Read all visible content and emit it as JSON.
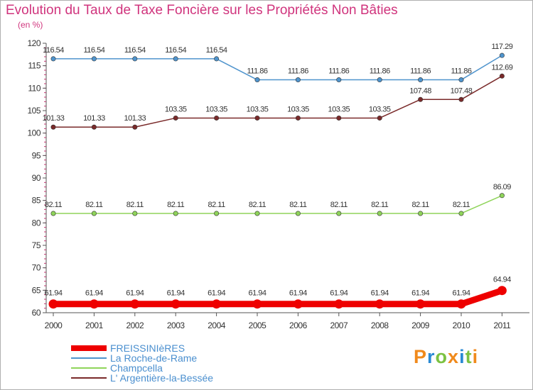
{
  "header": {
    "title": "Evolution du Taux de Taxe Foncière sur les Propriétés Non Bâties",
    "subtitle": "(en %)"
  },
  "logo": {
    "letters": [
      "P",
      "r",
      "o",
      "x",
      "i",
      "t",
      "i"
    ],
    "colors": [
      "#f08a1c",
      "#2a8ad4",
      "#7cc242",
      "#f08a1c",
      "#2a8ad4",
      "#7cc242",
      "#f08a1c"
    ]
  },
  "chart_data": {
    "type": "line",
    "title": "Evolution du Taux de Taxe Foncière sur les Propriétés Non Bâties",
    "ylabel": "(en %)",
    "xlabel": "",
    "x": [
      "2000",
      "2001",
      "2002",
      "2003",
      "2004",
      "2005",
      "2006",
      "2007",
      "2008",
      "2009",
      "2010",
      "2011"
    ],
    "ylim": [
      60,
      120
    ],
    "yticks": [
      "60",
      "65",
      "70",
      "75",
      "80",
      "85",
      "90",
      "95",
      "100",
      "105",
      "110",
      "115",
      "120"
    ],
    "grid": false,
    "legend_position": "bottom-left",
    "series": [
      {
        "name": "FREISSINIèRES",
        "color": "#ee0000",
        "values": [
          61.94,
          61.94,
          61.94,
          61.94,
          61.94,
          61.94,
          61.94,
          61.94,
          61.94,
          61.94,
          61.94,
          64.94
        ],
        "labels": [
          "61.94",
          "61.94",
          "61.94",
          "61.94",
          "61.94",
          "61.94",
          "61.94",
          "61.94",
          "61.94",
          "61.94",
          "61.94",
          "64.94"
        ]
      },
      {
        "name": "La Roche-de-Rame",
        "color": "#4f94cd",
        "values": [
          116.54,
          116.54,
          116.54,
          116.54,
          116.54,
          111.86,
          111.86,
          111.86,
          111.86,
          111.86,
          111.86,
          117.29
        ],
        "labels": [
          "116.54",
          "116.54",
          "116.54",
          "116.54",
          "116.54",
          "111.86",
          "111.86",
          "111.86",
          "111.86",
          "111.86",
          "111.86",
          "117.29"
        ]
      },
      {
        "name": "Champcella",
        "color": "#8fd45a",
        "values": [
          82.11,
          82.11,
          82.11,
          82.11,
          82.11,
          82.11,
          82.11,
          82.11,
          82.11,
          82.11,
          82.11,
          86.09
        ],
        "labels": [
          "82.11",
          "82.11",
          "82.11",
          "82.11",
          "82.11",
          "82.11",
          "82.11",
          "82.11",
          "82.11",
          "82.11",
          "82.11",
          "86.09"
        ]
      },
      {
        "name": "L' Argentière-la-Bessée",
        "color": "#7a2a2a",
        "values": [
          101.33,
          101.33,
          101.33,
          103.35,
          103.35,
          103.35,
          103.35,
          103.35,
          103.35,
          107.48,
          107.48,
          112.69
        ],
        "labels": [
          "101.33",
          "101.33",
          "101.33",
          "103.35",
          "103.35",
          "103.35",
          "103.35",
          "103.35",
          "103.35",
          "107.48",
          "107.48",
          "112.69"
        ]
      }
    ]
  }
}
